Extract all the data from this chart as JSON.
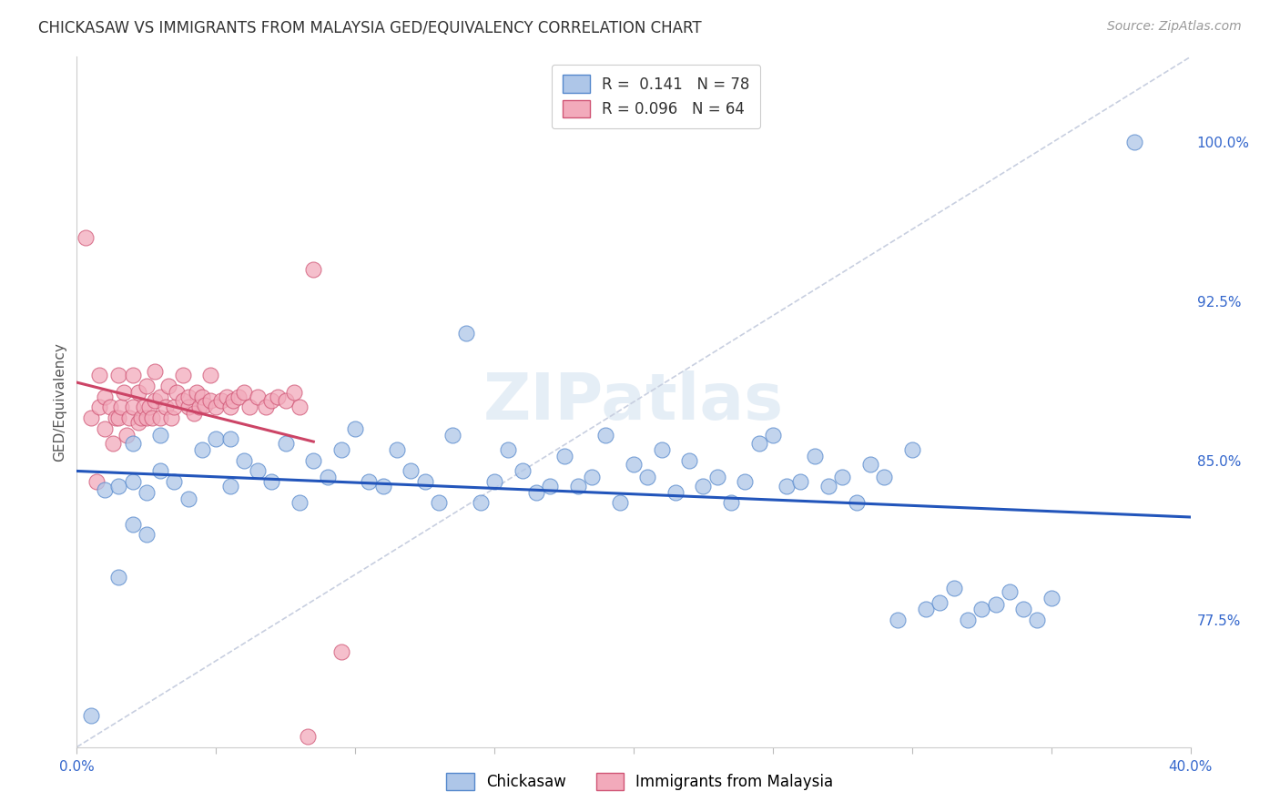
{
  "title": "CHICKASAW VS IMMIGRANTS FROM MALAYSIA GED/EQUIVALENCY CORRELATION CHART",
  "source": "Source: ZipAtlas.com",
  "ylabel": "GED/Equivalency",
  "ytick_values": [
    0.775,
    0.85,
    0.925,
    1.0
  ],
  "xlim": [
    0.0,
    0.4
  ],
  "ylim": [
    0.715,
    1.04
  ],
  "chickasaw_color": "#aec6e8",
  "chickasaw_edge": "#5588cc",
  "malaysia_color": "#f2aabb",
  "malaysia_edge": "#d05575",
  "trendline_blue": "#2255bb",
  "trendline_pink": "#cc4466",
  "trendline_dashed_color": "#c8cfe0",
  "watermark_color": "#d5e3f0",
  "background_color": "#ffffff",
  "grid_color": "#dde5f0",
  "title_fontsize": 12,
  "source_fontsize": 10,
  "axis_label_fontsize": 11,
  "tick_fontsize": 11,
  "legend_fontsize": 12,
  "chickasaw_x": [
    0.005,
    0.01,
    0.015,
    0.015,
    0.02,
    0.02,
    0.02,
    0.025,
    0.025,
    0.03,
    0.03,
    0.035,
    0.04,
    0.045,
    0.05,
    0.055,
    0.055,
    0.06,
    0.065,
    0.07,
    0.075,
    0.08,
    0.085,
    0.09,
    0.095,
    0.1,
    0.105,
    0.11,
    0.115,
    0.12,
    0.125,
    0.13,
    0.135,
    0.14,
    0.145,
    0.15,
    0.155,
    0.16,
    0.165,
    0.17,
    0.175,
    0.18,
    0.185,
    0.19,
    0.195,
    0.2,
    0.205,
    0.21,
    0.215,
    0.22,
    0.225,
    0.23,
    0.235,
    0.24,
    0.245,
    0.25,
    0.255,
    0.26,
    0.265,
    0.27,
    0.275,
    0.28,
    0.285,
    0.29,
    0.295,
    0.3,
    0.305,
    0.31,
    0.315,
    0.32,
    0.325,
    0.33,
    0.335,
    0.34,
    0.345,
    0.35,
    0.38
  ],
  "chickasaw_y": [
    0.73,
    0.836,
    0.795,
    0.838,
    0.82,
    0.84,
    0.858,
    0.815,
    0.835,
    0.845,
    0.862,
    0.84,
    0.832,
    0.855,
    0.86,
    0.86,
    0.838,
    0.85,
    0.845,
    0.84,
    0.858,
    0.83,
    0.85,
    0.842,
    0.855,
    0.865,
    0.84,
    0.838,
    0.855,
    0.845,
    0.84,
    0.83,
    0.862,
    0.91,
    0.83,
    0.84,
    0.855,
    0.845,
    0.835,
    0.838,
    0.852,
    0.838,
    0.842,
    0.862,
    0.83,
    0.848,
    0.842,
    0.855,
    0.835,
    0.85,
    0.838,
    0.842,
    0.83,
    0.84,
    0.858,
    0.862,
    0.838,
    0.84,
    0.852,
    0.838,
    0.842,
    0.83,
    0.848,
    0.842,
    0.775,
    0.855,
    0.78,
    0.783,
    0.79,
    0.775,
    0.78,
    0.782,
    0.788,
    0.78,
    0.775,
    0.785,
    1.0
  ],
  "malaysia_x": [
    0.003,
    0.005,
    0.007,
    0.008,
    0.008,
    0.01,
    0.01,
    0.012,
    0.013,
    0.014,
    0.015,
    0.015,
    0.016,
    0.017,
    0.018,
    0.019,
    0.02,
    0.02,
    0.022,
    0.022,
    0.023,
    0.024,
    0.025,
    0.025,
    0.026,
    0.027,
    0.028,
    0.028,
    0.03,
    0.03,
    0.032,
    0.033,
    0.034,
    0.035,
    0.036,
    0.038,
    0.038,
    0.04,
    0.04,
    0.042,
    0.043,
    0.044,
    0.045,
    0.046,
    0.048,
    0.048,
    0.05,
    0.052,
    0.054,
    0.055,
    0.056,
    0.058,
    0.06,
    0.062,
    0.065,
    0.068,
    0.07,
    0.072,
    0.075,
    0.078,
    0.08,
    0.083,
    0.085,
    0.095
  ],
  "malaysia_y": [
    0.955,
    0.87,
    0.84,
    0.875,
    0.89,
    0.865,
    0.88,
    0.875,
    0.858,
    0.87,
    0.87,
    0.89,
    0.875,
    0.882,
    0.862,
    0.87,
    0.875,
    0.89,
    0.868,
    0.882,
    0.87,
    0.875,
    0.87,
    0.885,
    0.875,
    0.87,
    0.878,
    0.892,
    0.87,
    0.88,
    0.875,
    0.885,
    0.87,
    0.875,
    0.882,
    0.878,
    0.89,
    0.875,
    0.88,
    0.872,
    0.882,
    0.875,
    0.88,
    0.876,
    0.878,
    0.89,
    0.875,
    0.878,
    0.88,
    0.875,
    0.878,
    0.88,
    0.882,
    0.875,
    0.88,
    0.875,
    0.878,
    0.88,
    0.878,
    0.882,
    0.875,
    0.72,
    0.94,
    0.76
  ]
}
